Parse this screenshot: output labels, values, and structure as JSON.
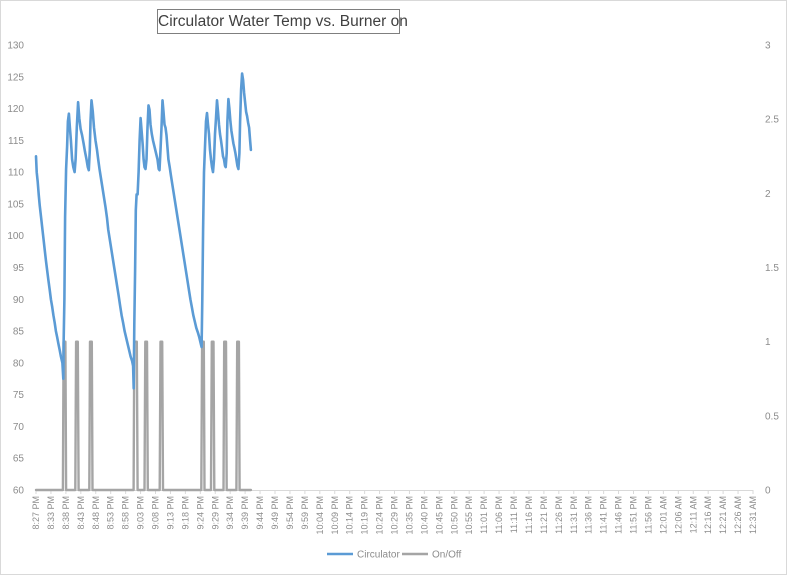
{
  "chart_data": {
    "type": "line",
    "title": "Circulator Water Temp vs. Burner on",
    "xlabel": "",
    "ylabel": "",
    "y_left_lim": [
      60,
      130
    ],
    "y_left_ticks": [
      "60",
      "65",
      "70",
      "75",
      "80",
      "85",
      "90",
      "95",
      "100",
      "105",
      "110",
      "115",
      "120",
      "125",
      "130"
    ],
    "y_right_lim": [
      0,
      3
    ],
    "y_right_ticks": [
      "0",
      "0.5",
      "1",
      "1.5",
      "2",
      "2.5",
      "3"
    ],
    "categories": [
      "8:27 PM",
      "8:33 PM",
      "8:38 PM",
      "8:43 PM",
      "8:48 PM",
      "8:53 PM",
      "8:58 PM",
      "9:03 PM",
      "9:08 PM",
      "9:13 PM",
      "9:18 PM",
      "9:24 PM",
      "9:29 PM",
      "9:34 PM",
      "9:39 PM",
      "9:44 PM",
      "9:49 PM",
      "9:54 PM",
      "9:59 PM",
      "10:04 PM",
      "10:09 PM",
      "10:14 PM",
      "10:19 PM",
      "10:24 PM",
      "10:29 PM",
      "10:35 PM",
      "10:40 PM",
      "10:45 PM",
      "10:50 PM",
      "10:55 PM",
      "11:01 PM",
      "11:06 PM",
      "11:11 PM",
      "11:16 PM",
      "11:21 PM",
      "11:26 PM",
      "11:31 PM",
      "11:36 PM",
      "11:41 PM",
      "11:46 PM",
      "11:51 PM",
      "11:56 PM",
      "12:01 AM",
      "12:06 AM",
      "12:11 AM",
      "12:16 AM",
      "12:21 AM",
      "12:26 AM",
      "12:31 AM"
    ],
    "grid": false,
    "legend_position": "bottom",
    "series": [
      {
        "name": "Circulator",
        "axis": "left",
        "color": "#5b9bd5",
        "points": [
          [
            0,
            112.5
          ],
          [
            0.3,
            110
          ],
          [
            0.7,
            108.5
          ],
          [
            1.1,
            106.5
          ],
          [
            1.5,
            104.8
          ],
          [
            2,
            103
          ],
          [
            2.5,
            101.3
          ],
          [
            3,
            99.5
          ],
          [
            3.5,
            97.8
          ],
          [
            4,
            96
          ],
          [
            4.5,
            94.5
          ],
          [
            5,
            93
          ],
          [
            5.5,
            91.5
          ],
          [
            6,
            90
          ],
          [
            6.5,
            88.8
          ],
          [
            7,
            87.5
          ],
          [
            7.5,
            86.3
          ],
          [
            8,
            85
          ],
          [
            8.5,
            84
          ],
          [
            9,
            83
          ],
          [
            9.5,
            82
          ],
          [
            10,
            81
          ],
          [
            10.6,
            80
          ],
          [
            10.95,
            77.5
          ],
          [
            11.1,
            83
          ],
          [
            11.4,
            90
          ],
          [
            11.7,
            103
          ],
          [
            12.1,
            110.5
          ],
          [
            12.5,
            114
          ],
          [
            12.8,
            118
          ],
          [
            13.2,
            119.2
          ],
          [
            13.6,
            117
          ],
          [
            14,
            115
          ],
          [
            14.5,
            112
          ],
          [
            15,
            110.8
          ],
          [
            15.5,
            110
          ],
          [
            15.9,
            112
          ],
          [
            16.4,
            117
          ],
          [
            16.9,
            121
          ],
          [
            17.4,
            118.5
          ],
          [
            17.9,
            116.8
          ],
          [
            18.5,
            115.8
          ],
          [
            19.1,
            114.5
          ],
          [
            19.7,
            113.2
          ],
          [
            20.3,
            112
          ],
          [
            20.8,
            110.8
          ],
          [
            21.2,
            110.3
          ],
          [
            21.6,
            113.5
          ],
          [
            21.9,
            118
          ],
          [
            22.3,
            121.3
          ],
          [
            22.8,
            119.5
          ],
          [
            23.3,
            117
          ],
          [
            23.9,
            115
          ],
          [
            24.5,
            113.5
          ],
          [
            25,
            112
          ],
          [
            25.5,
            110.5
          ],
          [
            26.1,
            109
          ],
          [
            26.7,
            107.5
          ],
          [
            27.3,
            106
          ],
          [
            27.9,
            104.5
          ],
          [
            28.5,
            102.8
          ],
          [
            29,
            101
          ],
          [
            29.6,
            99.5
          ],
          [
            30.2,
            98
          ],
          [
            30.8,
            96.5
          ],
          [
            31.4,
            95
          ],
          [
            32,
            93.5
          ],
          [
            32.6,
            92
          ],
          [
            33.2,
            90.5
          ],
          [
            33.8,
            89
          ],
          [
            34.4,
            87.5
          ],
          [
            35,
            86.3
          ],
          [
            35.6,
            85
          ],
          [
            36.2,
            84
          ],
          [
            36.8,
            83
          ],
          [
            37.4,
            82
          ],
          [
            38,
            81
          ],
          [
            38.6,
            80.3
          ],
          [
            39,
            79.5
          ],
          [
            39.25,
            76
          ],
          [
            39.5,
            86
          ],
          [
            39.8,
            94.5
          ],
          [
            40.1,
            104
          ],
          [
            40.4,
            106.5
          ],
          [
            40.8,
            106.5
          ],
          [
            41.2,
            110
          ],
          [
            41.6,
            115
          ],
          [
            42,
            118.5
          ],
          [
            42.4,
            116.5
          ],
          [
            42.8,
            114.5
          ],
          [
            43.2,
            112
          ],
          [
            43.6,
            110.8
          ],
          [
            44,
            110.5
          ],
          [
            44.4,
            112
          ],
          [
            44.8,
            117
          ],
          [
            45.2,
            120.5
          ],
          [
            45.6,
            119.8
          ],
          [
            46,
            117.5
          ],
          [
            46.5,
            116
          ],
          [
            47,
            115
          ],
          [
            47.6,
            114
          ],
          [
            48.2,
            113
          ],
          [
            48.8,
            112
          ],
          [
            49.3,
            110.5
          ],
          [
            49.6,
            110.3
          ],
          [
            50,
            113.5
          ],
          [
            50.4,
            117
          ],
          [
            50.8,
            121.3
          ],
          [
            51.2,
            119.5
          ],
          [
            51.6,
            117.5
          ],
          [
            52,
            117
          ],
          [
            52.4,
            115.8
          ],
          [
            52.8,
            114
          ],
          [
            53.2,
            112
          ],
          [
            53.7,
            110.8
          ],
          [
            54.2,
            109.5
          ],
          [
            54.8,
            108
          ],
          [
            55.4,
            106.5
          ],
          [
            56,
            105
          ],
          [
            56.6,
            103.5
          ],
          [
            57.2,
            102
          ],
          [
            57.8,
            100.5
          ],
          [
            58.4,
            99
          ],
          [
            59,
            97.5
          ],
          [
            59.6,
            96
          ],
          [
            60.2,
            94.5
          ],
          [
            60.8,
            93
          ],
          [
            61.4,
            91.5
          ],
          [
            62,
            90
          ],
          [
            62.6,
            88.8
          ],
          [
            63.2,
            87.5
          ],
          [
            63.8,
            86.5
          ],
          [
            64.4,
            85.5
          ],
          [
            65,
            84.8
          ],
          [
            65.6,
            84
          ],
          [
            66.2,
            83
          ],
          [
            66.5,
            82.5
          ],
          [
            66.8,
            90
          ],
          [
            67.1,
            101
          ],
          [
            67.5,
            110
          ],
          [
            67.9,
            114
          ],
          [
            68.3,
            118
          ],
          [
            68.7,
            119.3
          ],
          [
            69.1,
            117.5
          ],
          [
            69.5,
            116
          ],
          [
            69.9,
            113.5
          ],
          [
            70.3,
            112
          ],
          [
            70.7,
            110.8
          ],
          [
            71.1,
            110
          ],
          [
            71.5,
            112
          ],
          [
            71.9,
            116
          ],
          [
            72.3,
            118.5
          ],
          [
            72.7,
            121.3
          ],
          [
            73.1,
            119.5
          ],
          [
            73.5,
            117.5
          ],
          [
            73.9,
            116
          ],
          [
            74.3,
            115
          ],
          [
            74.7,
            113.8
          ],
          [
            75.1,
            112.5
          ],
          [
            75.5,
            112
          ],
          [
            75.9,
            111
          ],
          [
            76.2,
            110.8
          ],
          [
            76.6,
            113
          ],
          [
            76.9,
            118
          ],
          [
            77.3,
            121.5
          ],
          [
            77.7,
            120
          ],
          [
            78.1,
            118
          ],
          [
            78.5,
            116.5
          ],
          [
            78.9,
            115.5
          ],
          [
            79.3,
            114.5
          ],
          [
            79.7,
            113.8
          ],
          [
            80.1,
            113
          ],
          [
            80.5,
            112
          ],
          [
            80.9,
            111
          ],
          [
            81.3,
            110.5
          ],
          [
            81.7,
            113
          ],
          [
            82,
            118
          ],
          [
            82.4,
            123
          ],
          [
            82.8,
            125.5
          ],
          [
            83.2,
            124.5
          ],
          [
            83.6,
            122.5
          ],
          [
            84,
            121
          ],
          [
            84.4,
            119.5
          ],
          [
            84.8,
            118.8
          ],
          [
            85.2,
            117.8
          ],
          [
            85.6,
            117
          ],
          [
            86,
            115
          ],
          [
            86.3,
            113.5
          ]
        ]
      },
      {
        "name": "On/Off",
        "axis": "right",
        "color": "#a5a5a5",
        "points": [
          [
            0,
            0
          ],
          [
            10.8,
            0
          ],
          [
            11.1,
            1
          ],
          [
            11.8,
            1
          ],
          [
            12.1,
            0
          ],
          [
            15.8,
            0
          ],
          [
            16.1,
            1
          ],
          [
            16.8,
            1
          ],
          [
            17.1,
            0
          ],
          [
            21.4,
            0
          ],
          [
            21.7,
            1
          ],
          [
            22.4,
            1
          ],
          [
            22.7,
            0
          ],
          [
            39.2,
            0
          ],
          [
            39.5,
            1
          ],
          [
            40.5,
            1
          ],
          [
            40.8,
            0
          ],
          [
            43.6,
            0
          ],
          [
            43.9,
            1
          ],
          [
            44.6,
            1
          ],
          [
            44.9,
            0
          ],
          [
            49.7,
            0
          ],
          [
            50,
            1
          ],
          [
            50.7,
            1
          ],
          [
            51,
            0
          ],
          [
            66.4,
            0
          ],
          [
            66.7,
            1
          ],
          [
            67.4,
            1
          ],
          [
            67.7,
            0
          ],
          [
            70.3,
            0
          ],
          [
            70.6,
            1
          ],
          [
            71.3,
            1
          ],
          [
            71.6,
            0
          ],
          [
            75.3,
            0
          ],
          [
            75.6,
            1
          ],
          [
            76.3,
            1
          ],
          [
            76.6,
            0
          ],
          [
            80.5,
            0
          ],
          [
            80.8,
            1
          ],
          [
            81.5,
            1
          ],
          [
            81.8,
            0
          ],
          [
            86.3,
            0
          ]
        ]
      }
    ]
  }
}
